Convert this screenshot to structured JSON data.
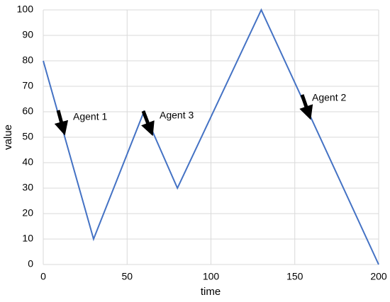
{
  "chart_data": {
    "type": "line",
    "x_label": "time",
    "y_label": "value",
    "x": [
      0,
      30,
      60,
      80,
      130,
      200
    ],
    "series": [
      {
        "color": "#4472c4",
        "values": [
          80,
          10,
          60,
          30,
          100,
          0
        ]
      }
    ],
    "xlim": [
      0,
      200
    ],
    "xticks": [
      0,
      50,
      100,
      150,
      200
    ],
    "ylim": [
      0,
      100
    ],
    "yticks": [
      0,
      10,
      20,
      30,
      40,
      50,
      60,
      70,
      80,
      90,
      100
    ],
    "grid": true,
    "annotations": [
      "Agent 1",
      "Agent 3",
      "Agent 2"
    ]
  }
}
